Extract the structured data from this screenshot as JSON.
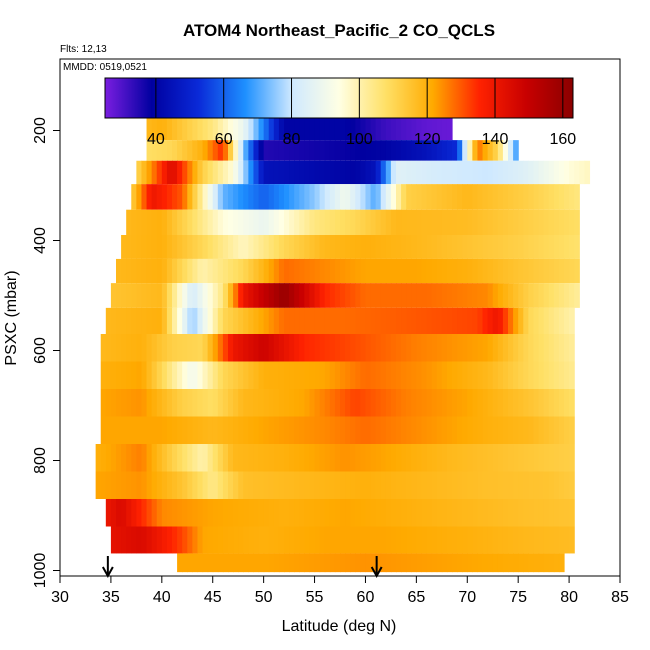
{
  "chart_data": {
    "type": "heatmap",
    "title": "ATOM4 Northeast_Pacific_2 CO_QCLS",
    "flights_label": "Flts: 12,13",
    "mmdd_label": "MMDD: 0519,0521",
    "xlabel": "Latitude (deg N)",
    "ylabel": "PSXC (mbar)",
    "xlim": [
      30,
      85
    ],
    "ylim": [
      1010,
      70
    ],
    "y_reversed": true,
    "x_ticks": [
      30,
      35,
      40,
      45,
      50,
      55,
      60,
      65,
      70,
      75,
      80,
      85
    ],
    "y_ticks": [
      200,
      400,
      600,
      800,
      1000
    ],
    "colorbar": {
      "range": [
        25,
        163
      ],
      "ticks": [
        40,
        60,
        80,
        100,
        120,
        140,
        160
      ],
      "palette": [
        "#7a1ee0",
        "#0000a0",
        "#0a2ad8",
        "#1e90ff",
        "#cfe9ff",
        "#ffffe4",
        "#ffe066",
        "#ffaa00",
        "#ff2200",
        "#c80000",
        "#8b0000"
      ]
    },
    "arrows_latitude": [
      34.7,
      61.1
    ],
    "layers": [
      {
        "p": 200,
        "lat_range": [
          38.5,
          68.5
        ],
        "values": [
          [
            38.5,
            118
          ],
          [
            40,
            120
          ],
          [
            45,
            105
          ],
          [
            48,
            88
          ],
          [
            52,
            40
          ],
          [
            58,
            40
          ],
          [
            62,
            32
          ],
          [
            66,
            28
          ],
          [
            68.5,
            27
          ]
        ]
      },
      {
        "p": 235,
        "lat_range": [
          38.5,
          75.0
        ],
        "values": [
          [
            38.5,
            108
          ],
          [
            41,
            110
          ],
          [
            44,
            120
          ],
          [
            46,
            135
          ],
          [
            48,
            75
          ],
          [
            50,
            35
          ],
          [
            58,
            38
          ],
          [
            62,
            40
          ],
          [
            66,
            45
          ],
          [
            69,
            52
          ],
          [
            71,
            128
          ],
          [
            73,
            110
          ],
          [
            75,
            65
          ]
        ]
      },
      {
        "p": 275,
        "lat_range": [
          37.5,
          82.0
        ],
        "values": [
          [
            37.5,
            110
          ],
          [
            39,
            125
          ],
          [
            41,
            145
          ],
          [
            44,
            112
          ],
          [
            47,
            95
          ],
          [
            50,
            45
          ],
          [
            55,
            42
          ],
          [
            59,
            40
          ],
          [
            61,
            45
          ],
          [
            63,
            85
          ],
          [
            67,
            82
          ],
          [
            72,
            80
          ],
          [
            76,
            85
          ],
          [
            80,
            95
          ],
          [
            82,
            98
          ]
        ]
      },
      {
        "p": 320,
        "lat_range": [
          37.0,
          81.0
        ],
        "values": [
          [
            37,
            112
          ],
          [
            39,
            140
          ],
          [
            42,
            130
          ],
          [
            46,
            72
          ],
          [
            50,
            60
          ],
          [
            55,
            75
          ],
          [
            58,
            90
          ],
          [
            61,
            70
          ],
          [
            64,
            112
          ],
          [
            70,
            118
          ],
          [
            76,
            112
          ],
          [
            81,
            105
          ]
        ]
      },
      {
        "p": 368,
        "lat_range": [
          36.5,
          81.0
        ],
        "values": [
          [
            36.5,
            118
          ],
          [
            40,
            120
          ],
          [
            43,
            108
          ],
          [
            46,
            95
          ],
          [
            50,
            88
          ],
          [
            55,
            105
          ],
          [
            59,
            110
          ],
          [
            63,
            118
          ],
          [
            70,
            117
          ],
          [
            76,
            112
          ],
          [
            81,
            108
          ]
        ]
      },
      {
        "p": 412,
        "lat_range": [
          36.0,
          81.0
        ],
        "values": [
          [
            36,
            118
          ],
          [
            40,
            120
          ],
          [
            44,
            110
          ],
          [
            48,
            98
          ],
          [
            52,
            110
          ],
          [
            56,
            118
          ],
          [
            60,
            120
          ],
          [
            65,
            118
          ],
          [
            70,
            115
          ],
          [
            75,
            112
          ],
          [
            81,
            107
          ]
        ]
      },
      {
        "p": 455,
        "lat_range": [
          35.5,
          81.0
        ],
        "values": [
          [
            35.5,
            118
          ],
          [
            40,
            120
          ],
          [
            44,
            100
          ],
          [
            48,
            110
          ],
          [
            52,
            128
          ],
          [
            56,
            125
          ],
          [
            60,
            122
          ],
          [
            65,
            122
          ],
          [
            70,
            120
          ],
          [
            75,
            115
          ],
          [
            81,
            110
          ]
        ]
      },
      {
        "p": 500,
        "lat_range": [
          35.0,
          81.0
        ],
        "values": [
          [
            35,
            115
          ],
          [
            40,
            118
          ],
          [
            43,
            82
          ],
          [
            46,
            105
          ],
          [
            48,
            140
          ],
          [
            52,
            160
          ],
          [
            56,
            135
          ],
          [
            60,
            128
          ],
          [
            66,
            128
          ],
          [
            72,
            125
          ],
          [
            76,
            112
          ],
          [
            81,
            102
          ]
        ]
      },
      {
        "p": 545,
        "lat_range": [
          34.5,
          80.5
        ],
        "values": [
          [
            34.5,
            118
          ],
          [
            40,
            120
          ],
          [
            43,
            75
          ],
          [
            46,
            110
          ],
          [
            52,
            128
          ],
          [
            58,
            128
          ],
          [
            65,
            130
          ],
          [
            71,
            132
          ],
          [
            73,
            140
          ],
          [
            76,
            110
          ],
          [
            80.5,
            100
          ]
        ]
      },
      {
        "p": 595,
        "lat_range": [
          34.0,
          80.5
        ],
        "values": [
          [
            34,
            118
          ],
          [
            38,
            120
          ],
          [
            41,
            112
          ],
          [
            44,
            110
          ],
          [
            47,
            140
          ],
          [
            50,
            148
          ],
          [
            54,
            135
          ],
          [
            58,
            132
          ],
          [
            65,
            126
          ],
          [
            72,
            122
          ],
          [
            76,
            110
          ],
          [
            80.5,
            102
          ]
        ]
      },
      {
        "p": 645,
        "lat_range": [
          34.0,
          80.5
        ],
        "values": [
          [
            34,
            120
          ],
          [
            38,
            122
          ],
          [
            40,
            110
          ],
          [
            43,
            90
          ],
          [
            46,
            110
          ],
          [
            50,
            120
          ],
          [
            56,
            122
          ],
          [
            60,
            128
          ],
          [
            66,
            124
          ],
          [
            72,
            118
          ],
          [
            76,
            110
          ],
          [
            80.5,
            103
          ]
        ]
      },
      {
        "p": 695,
        "lat_range": [
          34.0,
          80.5
        ],
        "values": [
          [
            34,
            122
          ],
          [
            38,
            124
          ],
          [
            42,
            112
          ],
          [
            45,
            108
          ],
          [
            48,
            118
          ],
          [
            54,
            122
          ],
          [
            59,
            132
          ],
          [
            64,
            126
          ],
          [
            70,
            122
          ],
          [
            76,
            115
          ],
          [
            80.5,
            108
          ]
        ]
      },
      {
        "p": 745,
        "lat_range": [
          34.0,
          80.5
        ],
        "values": [
          [
            34,
            122
          ],
          [
            40,
            122
          ],
          [
            45,
            118
          ],
          [
            50,
            122
          ],
          [
            56,
            125
          ],
          [
            60,
            128
          ],
          [
            66,
            124
          ],
          [
            72,
            120
          ],
          [
            76,
            118
          ],
          [
            80.5,
            112
          ]
        ]
      },
      {
        "p": 795,
        "lat_range": [
          33.5,
          80.5
        ],
        "values": [
          [
            33.5,
            120
          ],
          [
            38,
            126
          ],
          [
            41,
            112
          ],
          [
            44,
            100
          ],
          [
            47,
            118
          ],
          [
            52,
            120
          ],
          [
            58,
            124
          ],
          [
            62,
            122
          ],
          [
            68,
            118
          ],
          [
            74,
            115
          ],
          [
            80.5,
            112
          ]
        ]
      },
      {
        "p": 845,
        "lat_range": [
          33.5,
          80.5
        ],
        "values": [
          [
            33.5,
            122
          ],
          [
            38,
            124
          ],
          [
            42,
            115
          ],
          [
            45,
            104
          ],
          [
            48,
            116
          ],
          [
            54,
            118
          ],
          [
            60,
            120
          ],
          [
            66,
            118
          ],
          [
            72,
            116
          ],
          [
            78,
            115
          ],
          [
            80.5,
            113
          ]
        ]
      },
      {
        "p": 895,
        "lat_range": [
          34.5,
          80.5
        ],
        "values": [
          [
            34.5,
            140
          ],
          [
            36,
            145
          ],
          [
            40,
            125
          ],
          [
            45,
            122
          ],
          [
            52,
            120
          ],
          [
            58,
            122
          ],
          [
            64,
            120
          ],
          [
            70,
            118
          ],
          [
            76,
            116
          ],
          [
            80.5,
            115
          ]
        ]
      },
      {
        "p": 945,
        "lat_range": [
          35.0,
          80.5
        ],
        "values": [
          [
            35,
            142
          ],
          [
            38,
            145
          ],
          [
            42,
            132
          ],
          [
            44,
            122
          ],
          [
            50,
            120
          ],
          [
            56,
            122
          ],
          [
            62,
            122
          ],
          [
            70,
            120
          ],
          [
            76,
            118
          ],
          [
            80.5,
            117
          ]
        ]
      },
      {
        "p": 993,
        "lat_range": [
          41.5,
          79.5
        ],
        "values": [
          [
            41.5,
            122
          ],
          [
            50,
            122
          ],
          [
            60,
            124
          ],
          [
            70,
            122
          ],
          [
            79.5,
            120
          ]
        ]
      }
    ]
  }
}
